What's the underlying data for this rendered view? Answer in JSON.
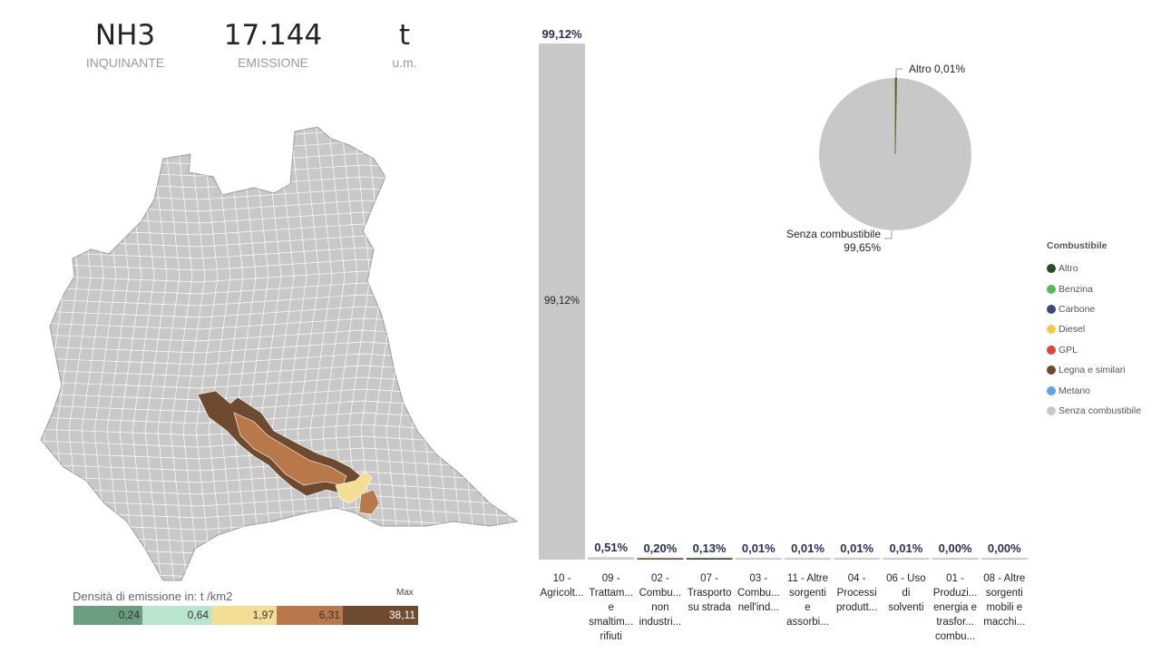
{
  "kpis": [
    {
      "value": "NH3",
      "label": "INQUINANTE"
    },
    {
      "value": "17.144",
      "label": "EMISSIONE"
    },
    {
      "value": "t",
      "label": "u.m."
    }
  ],
  "map": {
    "legend_title": "Densità di emissione in:  t /km2",
    "legend_max": "Max",
    "legend_bins": [
      {
        "value": "0,24",
        "color": "#6b9e7e"
      },
      {
        "value": "0,64",
        "color": "#b9e4cd"
      },
      {
        "value": "1,97",
        "color": "#f2df95"
      },
      {
        "value": "6,31",
        "color": "#b8784a"
      },
      {
        "value": "38,11",
        "color": "#6e4a31"
      }
    ],
    "base_color": "#c8c8c8",
    "border_color": "#ffffff"
  },
  "bar_chart": {
    "chart_data": {
      "type": "bar",
      "categories": [
        [
          "10 -",
          "Agricolt..."
        ],
        [
          "09 -",
          "Trattam...",
          "e",
          "smaltim...",
          "rifiuti"
        ],
        [
          "02 -",
          "Combu...",
          "non",
          "industri..."
        ],
        [
          "07 -",
          "Trasporto",
          "su strada"
        ],
        [
          "03 -",
          "Combu...",
          "nell'ind..."
        ],
        [
          "11 - Altre",
          "sorgenti",
          "e",
          "assorbi..."
        ],
        [
          "04 -",
          "Processi",
          "produtt..."
        ],
        [
          "06 - Uso",
          "di",
          "solventi"
        ],
        [
          "01 -",
          "Produzi...",
          "energia e",
          "trasfor...",
          "combu..."
        ],
        [
          "08 - Altre",
          "sorgenti",
          "mobili e",
          "macchi..."
        ]
      ],
      "values": [
        99.12,
        0.51,
        0.2,
        0.13,
        0.01,
        0.01,
        0.01,
        0.01,
        0.0,
        0.0
      ],
      "value_labels": [
        "99,12%",
        "0,51%",
        "0,20%",
        "0,13%",
        "0,01%",
        "0,01%",
        "0,01%",
        "0,01%",
        "0,00%",
        "0,00%"
      ],
      "inner_label": "99,12%",
      "bar_colors": [
        "#c8c8c8",
        "#c8c8c8",
        "#6e4a31",
        "#2e4a2b",
        "#c8c8c8",
        "#c8c8c8",
        "#c8c8c8",
        "#c8c8c8",
        "#c8c8c8",
        "#c8c8c8"
      ],
      "ylim": [
        0,
        100
      ]
    }
  },
  "pie_chart": {
    "chart_data": {
      "type": "pie",
      "slices": [
        {
          "label": "Senza combustibile",
          "value": 99.65,
          "display": "99,65%",
          "color": "#c8c8c8"
        },
        {
          "label": "Altro",
          "value": 0.01,
          "display": "0,01%",
          "color": "#5a6b2a"
        }
      ],
      "callouts": [
        "Altro 0,01%",
        "Senza combustibile",
        "99,65%"
      ]
    }
  },
  "legend": {
    "title": "Combustibile",
    "items": [
      {
        "label": "Altro",
        "color": "#2e4a2b"
      },
      {
        "label": "Benzina",
        "color": "#5cb85c"
      },
      {
        "label": "Carbone",
        "color": "#3b4a7a"
      },
      {
        "label": "Diesel",
        "color": "#f2c94c"
      },
      {
        "label": "GPL",
        "color": "#d9463b"
      },
      {
        "label": "Legna e similari",
        "color": "#6e4a31"
      },
      {
        "label": "Metano",
        "color": "#5aa6e0"
      },
      {
        "label": "Senza combustibile",
        "color": "#c8c8c8"
      }
    ]
  }
}
